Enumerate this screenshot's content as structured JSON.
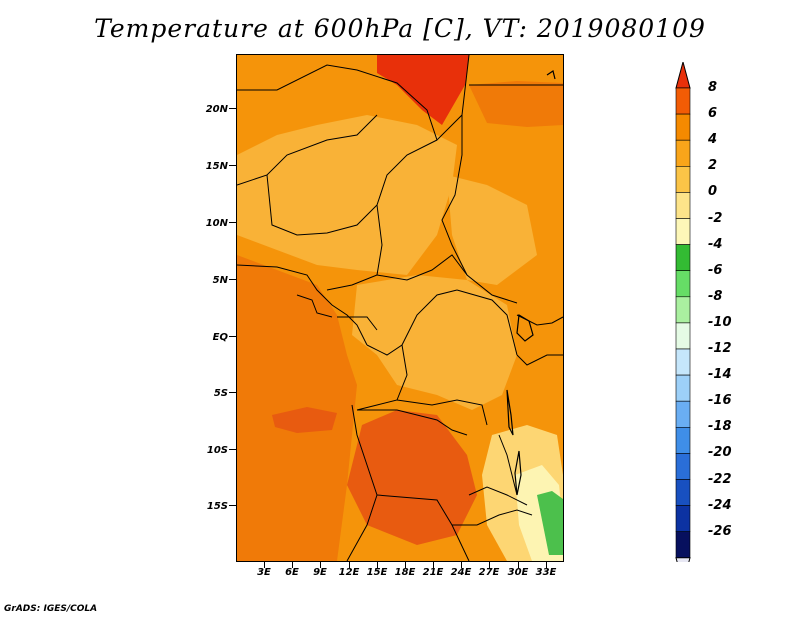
{
  "title": "Temperature at 600hPa [C], VT: 2019080109",
  "credit": "GrADS: IGES/COLA",
  "map": {
    "lat_ticks": [
      "20N",
      "15N",
      "10N",
      "5N",
      "EQ",
      "5S",
      "10S",
      "15S"
    ],
    "lon_ticks": [
      "3E",
      "6E",
      "9E",
      "12E",
      "15E",
      "18E",
      "21E",
      "24E",
      "27E",
      "30E",
      "33E"
    ]
  },
  "colorbar": {
    "levels": [
      "8",
      "6",
      "4",
      "2",
      "0",
      "-2",
      "-4",
      "-6",
      "-8",
      "-10",
      "-12",
      "-14",
      "-16",
      "-18",
      "-20",
      "-22",
      "-24",
      "-26"
    ],
    "colors": [
      "#e8300a",
      "#f25c05",
      "#f58a00",
      "#f9a51a",
      "#fbc447",
      "#fde48a",
      "#fdf7b8",
      "#33bb33",
      "#66dd66",
      "#aaf0a0",
      "#e5fbe5",
      "#c5e6fb",
      "#9dd0f8",
      "#6aaef3",
      "#3f8ee8",
      "#2a6ed8",
      "#1850c0",
      "#0c32a2",
      "#07105e",
      "#e8e8f4"
    ]
  },
  "field_colors": {
    "deep": "#e85b10",
    "hot": "#f07a08",
    "warm": "#f5940a",
    "mild": "#f9b237",
    "cool": "#fdd673",
    "cooler": "#fde48a",
    "pale": "#fdf4b2",
    "green": "#4cc04c",
    "red": "#e8300a"
  }
}
